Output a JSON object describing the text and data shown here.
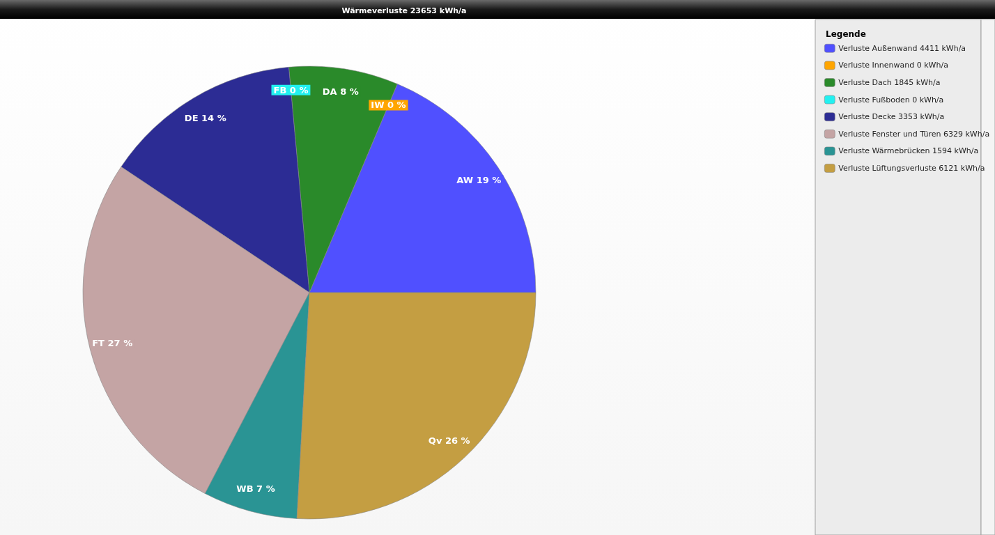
{
  "chart_data": {
    "type": "pie",
    "title": "Wärmeverluste 23653 kWh/a",
    "legend_title": "Legende",
    "legend": "right",
    "categories": [
      "Verluste Außenwand 4411 kWh/a",
      "Verluste Innenwand 0 kWh/a",
      "Verluste Dach 1845 kWh/a",
      "Verluste Fußboden 0 kWh/a",
      "Verluste Decke 3353 kWh/a",
      "Verluste Fenster und Türen 6329 kWh/a",
      "Verluste Wärmebrücken 1594 kWh/a",
      "Verluste Lüftungsverluste 6121 kWh/a"
    ],
    "values": [
      4411,
      0,
      1845,
      0,
      3353,
      6329,
      1594,
      6121
    ],
    "colors": [
      "#5050ff",
      "#ffa500",
      "#2a8a2a",
      "#22f0f0",
      "#2c2c94",
      "#c4a4a4",
      "#2a9494",
      "#c49e42"
    ],
    "value_labels": [
      "AW 19 %",
      "IW 0 %",
      "DA 8 %",
      "FB 0 %",
      "DE 14 %",
      "FT 27 %",
      "WB 7 %",
      "Qv 26 %"
    ]
  }
}
